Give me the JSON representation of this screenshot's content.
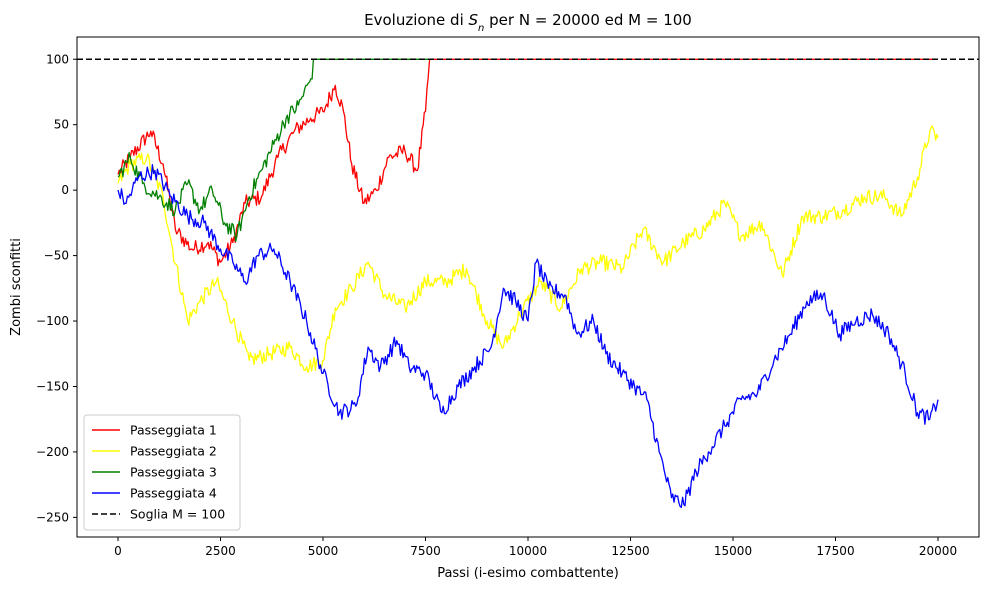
{
  "chart_data": {
    "type": "line",
    "title_prefix": "Evoluzione di ",
    "title_var": "S",
    "title_sub": "n",
    "title_suffix": " per N = 20000 ed M = 100",
    "xlabel": "Passi (i-esimo combattente)",
    "ylabel": "Zombi sconfitti",
    "xlim": [
      -1000,
      21000
    ],
    "ylim": [
      -265,
      117
    ],
    "xticks": [
      0,
      2500,
      5000,
      7500,
      10000,
      12500,
      15000,
      17500,
      20000
    ],
    "xtick_labels": [
      "0",
      "2500",
      "5000",
      "7500",
      "10000",
      "12500",
      "15000",
      "17500",
      "20000"
    ],
    "yticks": [
      100,
      50,
      0,
      -50,
      -100,
      -150,
      -200,
      -250
    ],
    "ytick_labels": [
      "100",
      "50",
      "0",
      "−50",
      "−100",
      "−150",
      "−200",
      "−250"
    ],
    "legend_position": "lower-left",
    "series": [
      {
        "name": "Passeggiata 1",
        "color": "#ff0000",
        "points": [
          [
            0,
            12
          ],
          [
            300,
            25
          ],
          [
            800,
            45
          ],
          [
            1100,
            20
          ],
          [
            1400,
            -30
          ],
          [
            1800,
            -45
          ],
          [
            2200,
            -40
          ],
          [
            2500,
            -55
          ],
          [
            2800,
            -40
          ],
          [
            3100,
            -10
          ],
          [
            3500,
            -5
          ],
          [
            3900,
            25
          ],
          [
            4300,
            45
          ],
          [
            4700,
            55
          ],
          [
            5000,
            60
          ],
          [
            5300,
            80
          ],
          [
            5500,
            60
          ],
          [
            5700,
            20
          ],
          [
            6000,
            -10
          ],
          [
            6300,
            0
          ],
          [
            6600,
            25
          ],
          [
            7000,
            30
          ],
          [
            7300,
            15
          ],
          [
            7500,
            60
          ],
          [
            7600,
            100
          ],
          [
            20000,
            100
          ]
        ]
      },
      {
        "name": "Passeggiata 2",
        "color": "#ffff00",
        "points": [
          [
            0,
            5
          ],
          [
            300,
            20
          ],
          [
            700,
            25
          ],
          [
            1100,
            -5
          ],
          [
            1300,
            -40
          ],
          [
            1700,
            -100
          ],
          [
            2000,
            -85
          ],
          [
            2400,
            -70
          ],
          [
            2800,
            -100
          ],
          [
            3200,
            -130
          ],
          [
            3700,
            -125
          ],
          [
            4200,
            -120
          ],
          [
            4600,
            -135
          ],
          [
            5000,
            -130
          ],
          [
            5300,
            -90
          ],
          [
            5700,
            -75
          ],
          [
            6100,
            -55
          ],
          [
            6500,
            -80
          ],
          [
            7000,
            -90
          ],
          [
            7500,
            -70
          ],
          [
            8000,
            -70
          ],
          [
            8500,
            -60
          ],
          [
            9000,
            -100
          ],
          [
            9400,
            -120
          ],
          [
            9800,
            -95
          ],
          [
            10300,
            -70
          ],
          [
            10800,
            -90
          ],
          [
            11300,
            -60
          ],
          [
            11800,
            -55
          ],
          [
            12300,
            -60
          ],
          [
            12800,
            -30
          ],
          [
            13300,
            -55
          ],
          [
            13800,
            -40
          ],
          [
            14300,
            -30
          ],
          [
            14800,
            -10
          ],
          [
            15200,
            -35
          ],
          [
            15700,
            -25
          ],
          [
            16200,
            -65
          ],
          [
            16700,
            -20
          ],
          [
            17200,
            -20
          ],
          [
            17700,
            -15
          ],
          [
            18200,
            -5
          ],
          [
            18700,
            -5
          ],
          [
            19100,
            -20
          ],
          [
            19500,
            10
          ],
          [
            19800,
            45
          ],
          [
            20000,
            40
          ]
        ]
      },
      {
        "name": "Passeggiata 3",
        "color": "#008000",
        "points": [
          [
            0,
            10
          ],
          [
            300,
            25
          ],
          [
            600,
            5
          ],
          [
            1000,
            -5
          ],
          [
            1400,
            -15
          ],
          [
            1700,
            5
          ],
          [
            2000,
            -15
          ],
          [
            2300,
            0
          ],
          [
            2600,
            -25
          ],
          [
            2900,
            -35
          ],
          [
            3200,
            -5
          ],
          [
            3500,
            15
          ],
          [
            3800,
            35
          ],
          [
            4100,
            55
          ],
          [
            4400,
            65
          ],
          [
            4700,
            85
          ],
          [
            4800,
            100
          ],
          [
            7600,
            100
          ]
        ]
      },
      {
        "name": "Passeggiata 4",
        "color": "#0000ff",
        "points": [
          [
            0,
            0
          ],
          [
            200,
            -10
          ],
          [
            500,
            10
          ],
          [
            900,
            15
          ],
          [
            1300,
            -5
          ],
          [
            1700,
            -20
          ],
          [
            2100,
            -25
          ],
          [
            2500,
            -45
          ],
          [
            2800,
            -55
          ],
          [
            3100,
            -70
          ],
          [
            3400,
            -50
          ],
          [
            3800,
            -45
          ],
          [
            4200,
            -70
          ],
          [
            4600,
            -100
          ],
          [
            5000,
            -140
          ],
          [
            5400,
            -170
          ],
          [
            5800,
            -165
          ],
          [
            6100,
            -120
          ],
          [
            6400,
            -135
          ],
          [
            6800,
            -115
          ],
          [
            7100,
            -135
          ],
          [
            7500,
            -140
          ],
          [
            7900,
            -170
          ],
          [
            8300,
            -150
          ],
          [
            8700,
            -135
          ],
          [
            9100,
            -120
          ],
          [
            9400,
            -75
          ],
          [
            9700,
            -85
          ],
          [
            10000,
            -100
          ],
          [
            10200,
            -55
          ],
          [
            10500,
            -75
          ],
          [
            10900,
            -80
          ],
          [
            11200,
            -110
          ],
          [
            11600,
            -100
          ],
          [
            11900,
            -125
          ],
          [
            12300,
            -140
          ],
          [
            12600,
            -150
          ],
          [
            12900,
            -160
          ],
          [
            13200,
            -200
          ],
          [
            13500,
            -235
          ],
          [
            13800,
            -240
          ],
          [
            14100,
            -215
          ],
          [
            14400,
            -200
          ],
          [
            14800,
            -180
          ],
          [
            15200,
            -160
          ],
          [
            15600,
            -155
          ],
          [
            16000,
            -130
          ],
          [
            16400,
            -110
          ],
          [
            16800,
            -85
          ],
          [
            17200,
            -80
          ],
          [
            17600,
            -110
          ],
          [
            18000,
            -100
          ],
          [
            18400,
            -95
          ],
          [
            18800,
            -110
          ],
          [
            19200,
            -140
          ],
          [
            19500,
            -170
          ],
          [
            19800,
            -175
          ],
          [
            20000,
            -160
          ]
        ]
      },
      {
        "name": "Soglia M = 100",
        "color": "#000000",
        "dashed": true,
        "points": [
          [
            -1000,
            100
          ],
          [
            21000,
            100
          ]
        ]
      }
    ]
  }
}
